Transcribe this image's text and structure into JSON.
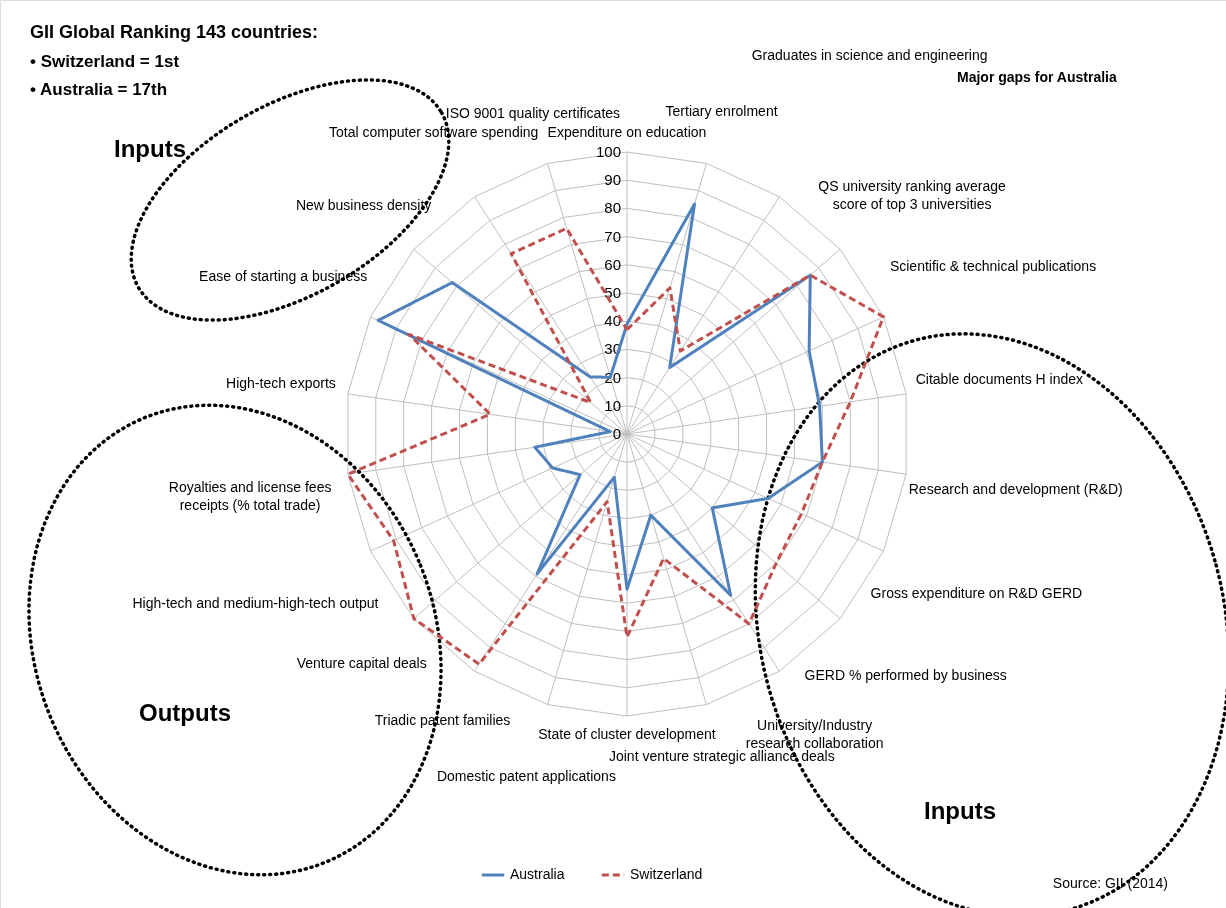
{
  "chart_data": {
    "type": "radar",
    "title": "GII Global Ranking 143 countries:",
    "categories": [
      "Expenditure on education",
      "Tertiary enrolment",
      "Graduates in science and engineering",
      "QS university ranking average score of top 3 universities",
      "Scientific & technical publications",
      "Citable documents H index",
      "Research and development (R&D)",
      "Gross expenditure on R&D GERD",
      "GERD % performed by business",
      "University/Industry research collaboration",
      "Joint venture strategic alliance deals",
      "State of cluster development",
      "Domestic patent applications",
      "Triadic patent families",
      "Venture capital deals",
      "High-tech and medium-high-tech output",
      "Royalties and license fees receipts (% total trade)",
      "High-tech exports",
      "Ease of starting a business",
      "New business density",
      "Total computer software spending",
      "ISO 9001 quality certificates"
    ],
    "series": [
      {
        "name": "Australia",
        "color": "#4f81bd",
        "line_style": "solid",
        "values": [
          39,
          85,
          28,
          86,
          71,
          69,
          70,
          55,
          40,
          68,
          30,
          55,
          16,
          59,
          22,
          29,
          33,
          6,
          97,
          82,
          24,
          21
        ]
      },
      {
        "name": "Switzerland",
        "color": "#c0504d",
        "line_style": "dashed",
        "values": [
          37,
          54,
          35,
          86,
          100,
          80,
          70,
          68,
          70,
          80,
          46,
          72,
          25,
          97,
          100,
          91,
          100,
          49,
          85,
          17,
          76,
          76
        ]
      }
    ],
    "ylim": [
      0,
      100
    ],
    "yticks": [
      0,
      10,
      20,
      30,
      40,
      50,
      60,
      70,
      80,
      90,
      100
    ],
    "grid": true,
    "legend": "bottom",
    "annotations": [
      "•   Switzerland = 1st",
      "•   Australia = 17th",
      "Major gaps for Australia",
      "Inputs",
      "Outputs",
      "Inputs",
      "Source: GII (2014)"
    ]
  }
}
